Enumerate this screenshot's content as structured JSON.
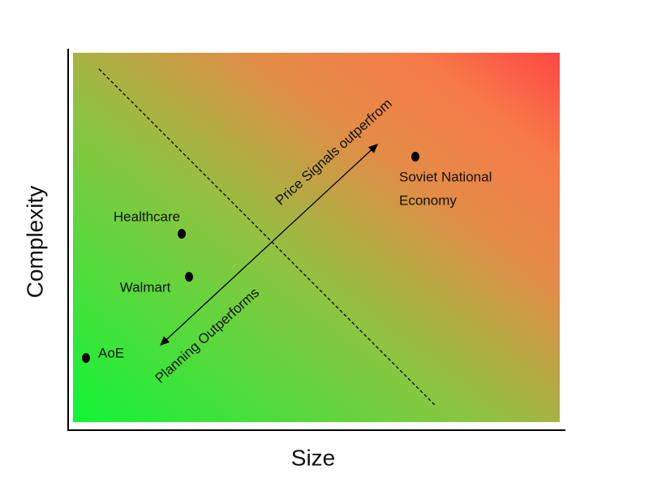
{
  "axes": {
    "x_label": "Size",
    "y_label": "Complexity"
  },
  "points": [
    {
      "label": [
        "AoE"
      ]
    },
    {
      "label": [
        "Healthcare"
      ]
    },
    {
      "label": [
        "Walmart"
      ]
    },
    {
      "label": [
        "Soviet National",
        "Economy"
      ]
    }
  ],
  "annotations": {
    "price_signals": "Price Signals outperfrom",
    "planning": "Planning Outperforms"
  }
}
